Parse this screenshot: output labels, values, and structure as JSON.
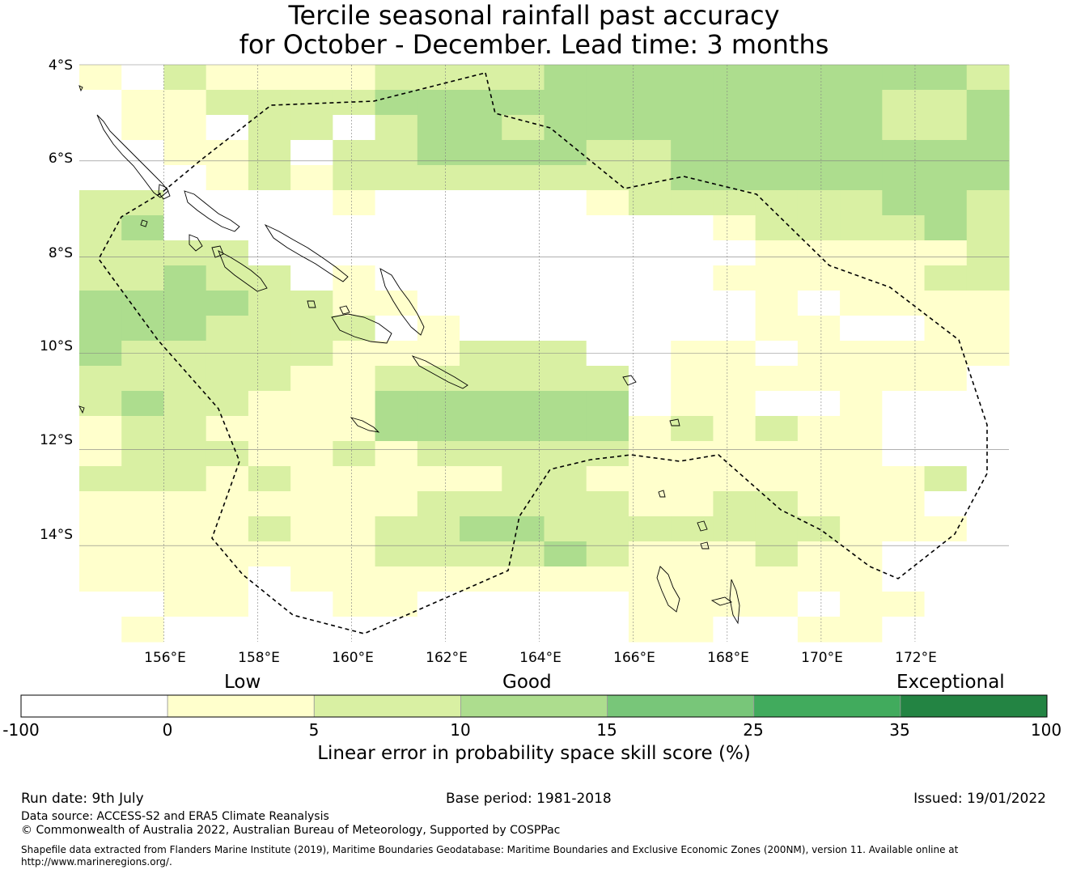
{
  "title": {
    "line1": "Tercile seasonal rainfall past accuracy",
    "line2": "for October - December. Lead time: 3 months"
  },
  "map": {
    "lat_labels": [
      "4°S",
      "6°S",
      "8°S",
      "10°S",
      "12°S",
      "14°S"
    ],
    "lon_labels": [
      "156°E",
      "158°E",
      "160°E",
      "162°E",
      "164°E",
      "166°E",
      "168°E",
      "170°E",
      "172°E"
    ],
    "extent": {
      "lon_min": 154.2,
      "lon_max": 174.0,
      "lat_min": -16.0,
      "lat_max": -4.0
    },
    "grid_resolution_deg": 0.833,
    "skill_grid_bins": [
      "1021111222233333333332",
      "0112222333333333333223",
      "0110220233233333333223",
      "0011202233332233333333",
      "0001212222222233333333",
      "2200001000001222222332",
      "2300000000000001222232",
      "2222000000000000111112",
      "2232201000000001111122",
      "3333221100000000101111",
      "3332222010000000110011",
      "3222221112220011011111",
      "2222211222222011111110",
      "2322111333333011001000",
      "1221111333333121211000",
      "1222112122222111111000",
      "2221211111221111111120",
      "1111111122222112211100",
      "1111211223322222221110",
      "1111111222232111211000",
      "1111011111111111111000",
      "0011001100000111101100",
      "0100000000000110011000"
    ],
    "boundary_note": "Solomon Islands EEZ (dashed line)"
  },
  "colorbar": {
    "category_words": [
      "Low",
      "Good",
      "Exceptional"
    ],
    "ticks": [
      "-100",
      "0",
      "5",
      "10",
      "15",
      "25",
      "35",
      "100"
    ],
    "colors": [
      "#ffffff",
      "#ffffcc",
      "#d9f0a3",
      "#addd8e",
      "#78c679",
      "#41ab5d",
      "#238443"
    ],
    "title": "Linear error in probability space skill score (%)"
  },
  "footer": {
    "run_date": "Run date: 9th July",
    "base_period": "Base period: 1981-2018",
    "issued": "Issued: 19/01/2022",
    "data_source": "Data source: ACCESS-S2 and ERA5 Climate Reanalysis",
    "copyright": "© Commonwealth of Australia 2022, Australian Bureau of Meteorology, Supported by COSPPac",
    "shapefile_line1": "Shapefile data extracted from Flanders Marine Institute (2019), Maritime Boundaries Geodatabase: Maritime Boundaries and Exclusive Economic Zones (200NM), version 11. Available online at",
    "shapefile_line2": "http://www.marineregions.org/."
  }
}
